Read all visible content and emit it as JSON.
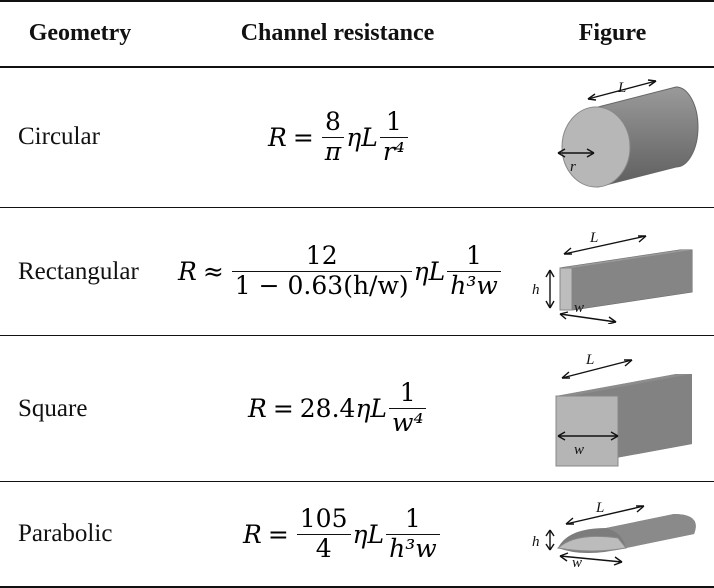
{
  "header": {
    "geometry": "Geometry",
    "resistance": "Channel resistance",
    "figure": "Figure"
  },
  "rows": [
    {
      "label": "Circular",
      "formula": {
        "lhs": "R",
        "rel": "=",
        "num": "8",
        "den": "π",
        "mid": "ηL",
        "num2": "1",
        "den2": "r⁴"
      },
      "fig": {
        "length": "L",
        "radius": "r"
      }
    },
    {
      "label": "Rectangular",
      "formula": {
        "lhs": "R",
        "rel": "≈",
        "num": "12",
        "den": "1 − 0.63(h/w)",
        "mid": "ηL",
        "num2": "1",
        "den2": "h³w"
      },
      "fig": {
        "length": "L",
        "height": "h",
        "width": "w"
      }
    },
    {
      "label": "Square",
      "formula": {
        "lhs": "R",
        "rel": "=",
        "coef": "28.4",
        "mid": "ηL",
        "num2": "1",
        "den2": "w⁴"
      },
      "fig": {
        "length": "L",
        "width": "w"
      }
    },
    {
      "label": "Parabolic",
      "formula": {
        "lhs": "R",
        "rel": "=",
        "num": "105",
        "den": "4",
        "mid": "ηL",
        "num2": "1",
        "den2": "h³w"
      },
      "fig": {
        "length": "L",
        "height": "h",
        "width": "w"
      }
    }
  ]
}
